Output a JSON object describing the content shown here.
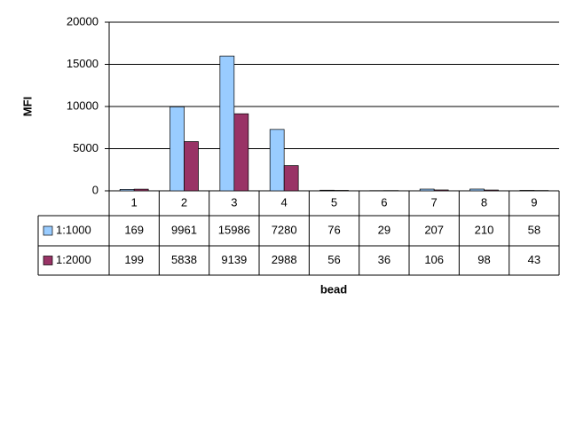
{
  "chart_data": {
    "type": "bar",
    "ylabel": "MFI",
    "xlabel": "bead",
    "categories": [
      "1",
      "2",
      "3",
      "4",
      "5",
      "6",
      "7",
      "8",
      "9"
    ],
    "series": [
      {
        "name": "1:1000",
        "color": "#99ccff",
        "values": [
          169,
          9961,
          15986,
          7280,
          76,
          29,
          207,
          210,
          58
        ]
      },
      {
        "name": "1:2000",
        "color": "#993366",
        "values": [
          199,
          5838,
          9139,
          2988,
          56,
          36,
          106,
          98,
          43
        ]
      }
    ],
    "ylim": [
      0,
      20000
    ],
    "yticks": [
      0,
      5000,
      10000,
      15000,
      20000
    ],
    "grid": true
  }
}
